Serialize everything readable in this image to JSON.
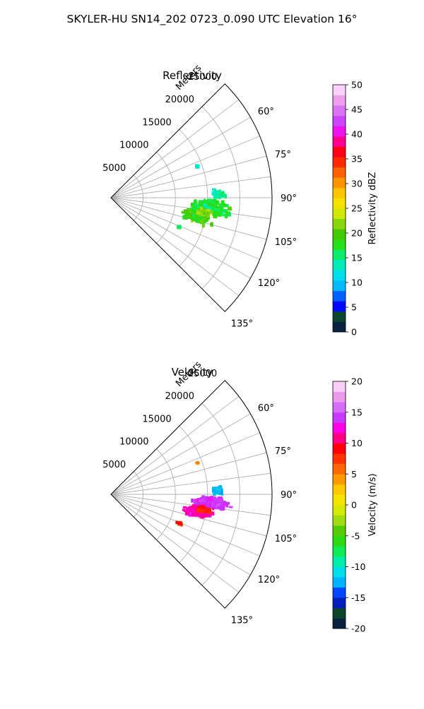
{
  "figure": {
    "suptitle": "SKYLER-HU  SN14_202  0723_0.090 UTC Elevation 16°"
  },
  "chart_data": [
    {
      "type": "heatmap",
      "title": "Reflectivity",
      "radial_label": "Meters",
      "radial_ticks": [
        5000,
        10000,
        15000,
        20000,
        25000
      ],
      "range_max_m": 25000,
      "azimuth_range_deg": [
        45,
        135
      ],
      "azimuth_ticks_deg": [
        60,
        75,
        90,
        105,
        120,
        135
      ],
      "azimuth_tick_labels": [
        "60°",
        "75°",
        "90°",
        "105°",
        "120°",
        "135°"
      ],
      "grid": true,
      "colorbar": {
        "label": "Reflectivity dBZ",
        "min": 0,
        "max": 50,
        "ticks": [
          0,
          5,
          10,
          15,
          20,
          25,
          30,
          35,
          40,
          45,
          50
        ],
        "stops": [
          {
            "v": 0,
            "c": "#0a1450"
          },
          {
            "v": 2.5,
            "c": "#0a3a2a"
          },
          {
            "v": 4,
            "c": "#0a5a30"
          },
          {
            "v": 5,
            "c": "#0000ff"
          },
          {
            "v": 7,
            "c": "#0050ff"
          },
          {
            "v": 9,
            "c": "#00b4ff"
          },
          {
            "v": 12,
            "c": "#00e6e6"
          },
          {
            "v": 15,
            "c": "#00f08c"
          },
          {
            "v": 17,
            "c": "#1ee61e"
          },
          {
            "v": 20,
            "c": "#46c800"
          },
          {
            "v": 22.5,
            "c": "#a0dc14"
          },
          {
            "v": 25,
            "c": "#f0f000"
          },
          {
            "v": 28,
            "c": "#ffc800"
          },
          {
            "v": 31,
            "c": "#ff8200"
          },
          {
            "v": 34,
            "c": "#ff3200"
          },
          {
            "v": 36,
            "c": "#ff0000"
          },
          {
            "v": 38,
            "c": "#ff006e"
          },
          {
            "v": 40,
            "c": "#ff00e6"
          },
          {
            "v": 42,
            "c": "#c832ff"
          },
          {
            "v": 44,
            "c": "#d264ff"
          },
          {
            "v": 46,
            "c": "#e68ce6"
          },
          {
            "v": 48,
            "c": "#f5b4f5"
          },
          {
            "v": 50,
            "c": "#fff0ff"
          }
        ]
      },
      "echo_cells": [
        {
          "az": 96,
          "r": 15500,
          "naz": 6,
          "nr": 4000,
          "value": 17,
          "spread": 5,
          "count": 260
        },
        {
          "az": 102,
          "r": 13500,
          "naz": 6,
          "nr": 3000,
          "value": 19,
          "spread": 5,
          "count": 200
        },
        {
          "az": 88,
          "r": 16800,
          "naz": 3,
          "nr": 1500,
          "value": 14,
          "spread": 3,
          "count": 40
        },
        {
          "az": 99,
          "r": 14500,
          "naz": 3,
          "nr": 2000,
          "value": 22,
          "spread": 3,
          "count": 40
        },
        {
          "az": 113,
          "r": 11500,
          "naz": 1.2,
          "nr": 800,
          "value": 16,
          "spread": 2,
          "count": 6
        },
        {
          "az": 70,
          "r": 14200,
          "naz": 0.5,
          "nr": 300,
          "value": 13,
          "spread": 1,
          "count": 2
        }
      ]
    },
    {
      "type": "heatmap",
      "title": "Velocity",
      "radial_label": "Meters",
      "radial_ticks": [
        5000,
        10000,
        15000,
        20000,
        25000
      ],
      "range_max_m": 25000,
      "azimuth_range_deg": [
        45,
        135
      ],
      "azimuth_ticks_deg": [
        60,
        75,
        90,
        105,
        120,
        135
      ],
      "azimuth_tick_labels": [
        "60°",
        "75°",
        "90°",
        "105°",
        "120°",
        "135°"
      ],
      "grid": true,
      "colorbar": {
        "label": "Velocity (m/s)",
        "min": -20,
        "max": 20,
        "ticks": [
          -20,
          -15,
          -10,
          -5,
          0,
          5,
          10,
          15,
          20
        ],
        "stops": [
          {
            "v": -20,
            "c": "#0a1450"
          },
          {
            "v": -18,
            "c": "#0a3a2a"
          },
          {
            "v": -16.5,
            "c": "#0a5a30"
          },
          {
            "v": -15.5,
            "c": "#0000ff"
          },
          {
            "v": -14,
            "c": "#0050ff"
          },
          {
            "v": -12.5,
            "c": "#00b4ff"
          },
          {
            "v": -10.5,
            "c": "#00e6e6"
          },
          {
            "v": -8.5,
            "c": "#00f08c"
          },
          {
            "v": -6.5,
            "c": "#1ee61e"
          },
          {
            "v": -4.5,
            "c": "#46c800"
          },
          {
            "v": -2.5,
            "c": "#a0dc14"
          },
          {
            "v": 0,
            "c": "#f0f000"
          },
          {
            "v": 2.5,
            "c": "#ffc800"
          },
          {
            "v": 5,
            "c": "#ff8200"
          },
          {
            "v": 7.5,
            "c": "#ff3200"
          },
          {
            "v": 9,
            "c": "#ff0000"
          },
          {
            "v": 10.5,
            "c": "#ff006e"
          },
          {
            "v": 12.5,
            "c": "#ff00e6"
          },
          {
            "v": 14,
            "c": "#c832ff"
          },
          {
            "v": 15.5,
            "c": "#d264ff"
          },
          {
            "v": 17,
            "c": "#e68ce6"
          },
          {
            "v": 18.5,
            "c": "#f5b4f5"
          },
          {
            "v": 20,
            "c": "#fff0ff"
          }
        ]
      },
      "echo_cells": [
        {
          "az": 95,
          "r": 15500,
          "naz": 5,
          "nr": 3800,
          "value": 14,
          "spread": 2,
          "count": 240
        },
        {
          "az": 101,
          "r": 13800,
          "naz": 5,
          "nr": 3000,
          "value": 11.5,
          "spread": 2,
          "count": 200
        },
        {
          "az": 88,
          "r": 16800,
          "naz": 3,
          "nr": 1500,
          "value": -12,
          "spread": 2,
          "count": 40
        },
        {
          "az": 99.5,
          "r": 14600,
          "naz": 2,
          "nr": 1800,
          "value": 8,
          "spread": 1.5,
          "count": 30
        },
        {
          "az": 113,
          "r": 11500,
          "naz": 1.2,
          "nr": 800,
          "value": 8,
          "spread": 1.5,
          "count": 6
        },
        {
          "az": 70,
          "r": 14200,
          "naz": 0.5,
          "nr": 300,
          "value": 5,
          "spread": 1,
          "count": 2
        }
      ]
    }
  ]
}
